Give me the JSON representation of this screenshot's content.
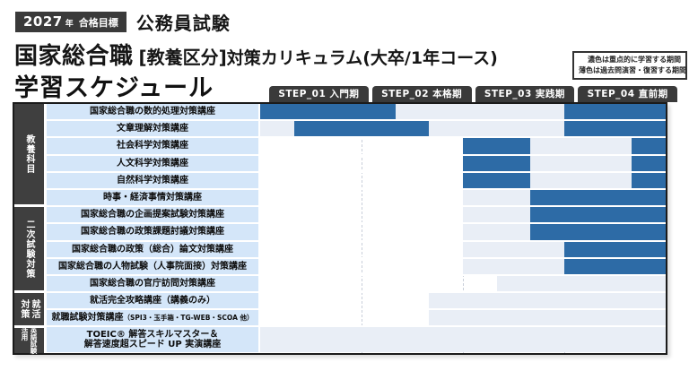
{
  "header": {
    "badge_year": "2027",
    "badge_year_suffix": "年",
    "badge_goal": "合格目標",
    "exam_type": "公務員試験",
    "title_main": "国家総合職",
    "title_bracket": "[教養区分]",
    "title_rest": "対策カリキュラム(大卒/1年コース)",
    "subtitle": "学習スケジュール"
  },
  "legend": {
    "line1": "濃色は重点的に学習する期間",
    "line2": "薄色は過去問演習・復習する期間"
  },
  "colors": {
    "dark_blue": "#2d6ba6",
    "light_blue": "#e9eef6",
    "label_bg": "#d4e6f9",
    "frame_gray": "#3a3a3a"
  },
  "chart_data": {
    "type": "table",
    "title": "学習スケジュール (Gantt-style study schedule, 12 months over 4 steps)",
    "x_axis_steps": [
      "STEP_01 入門期",
      "STEP_02 本格期",
      "STEP_03 実践期",
      "STEP_04 直前期"
    ],
    "unit": "months (0-12, 3 months per STEP)",
    "intensity_legend": {
      "dark": "重点的に学習する期間",
      "light": "過去問演習・復習する期間"
    },
    "groups": [
      {
        "columns": [
          "教養科目"
        ],
        "small": false,
        "row_count": 6
      },
      {
        "columns": [
          "二次試験対策"
        ],
        "small": false,
        "row_count": 5
      },
      {
        "columns": [
          "就活",
          "対策"
        ],
        "small": false,
        "row_count": 2
      },
      {
        "columns": [
          "英語試験",
          "活用"
        ],
        "small": true,
        "row_count": 1
      }
    ],
    "rows": [
      {
        "label": "国家総合職の数的処理対策講座",
        "segments": [
          [
            "dark",
            0,
            4
          ],
          [
            "light",
            4,
            9
          ],
          [
            "dark",
            9,
            12
          ]
        ]
      },
      {
        "label": "文章理解対策講座",
        "segments": [
          [
            "light",
            0,
            1
          ],
          [
            "dark",
            1,
            5
          ],
          [
            "light",
            5,
            9
          ],
          [
            "dark",
            9,
            12
          ]
        ]
      },
      {
        "label": "社会科学対策講座",
        "segments": [
          [
            "dark",
            6,
            8
          ],
          [
            "light",
            8,
            11
          ],
          [
            "dark",
            11,
            12
          ]
        ]
      },
      {
        "label": "人文科学対策講座",
        "segments": [
          [
            "dark",
            6,
            8
          ],
          [
            "light",
            8,
            11
          ],
          [
            "dark",
            11,
            12
          ]
        ]
      },
      {
        "label": "自然科学対策講座",
        "segments": [
          [
            "dark",
            6,
            8
          ],
          [
            "light",
            8,
            11
          ],
          [
            "dark",
            11,
            12
          ]
        ]
      },
      {
        "label": "時事・経済事情対策講座",
        "segments": [
          [
            "light",
            6,
            8
          ],
          [
            "dark",
            8,
            12
          ]
        ]
      },
      {
        "label": "国家総合職の企画提案試験対策講座",
        "segments": [
          [
            "light",
            6,
            8
          ],
          [
            "dark",
            8,
            12
          ]
        ]
      },
      {
        "label": "国家総合職の政策課題討議対策講座",
        "segments": [
          [
            "light",
            6,
            8
          ],
          [
            "dark",
            8,
            12
          ]
        ]
      },
      {
        "label": "国家総合職の政策（総合）論文対策講座",
        "segments": [
          [
            "light",
            6,
            9
          ],
          [
            "dark",
            9,
            12
          ]
        ]
      },
      {
        "label": "国家総合職の人物試験（人事院面接）対策講座",
        "segments": [
          [
            "light",
            6,
            9
          ],
          [
            "dark",
            9,
            12
          ]
        ]
      },
      {
        "label": "国家総合職の官庁訪問対策講座",
        "segments": [
          [
            "light",
            7,
            12
          ]
        ]
      },
      {
        "label": "就活完全攻略講座（講義のみ）",
        "segments": [
          [
            "light",
            5,
            12
          ]
        ]
      },
      {
        "label": "就職試験対策講座",
        "label_note": "（SPI3・玉手箱・TG-WEB・SCOA 他）",
        "segments": [
          [
            "light",
            5,
            12
          ]
        ]
      },
      {
        "label_lines": [
          "TOEIC® 解答スキルマスター＆",
          "解答速度超スピード UP 実演講座"
        ],
        "tall": true,
        "segments": [
          [
            "light",
            0,
            12
          ]
        ]
      }
    ]
  }
}
